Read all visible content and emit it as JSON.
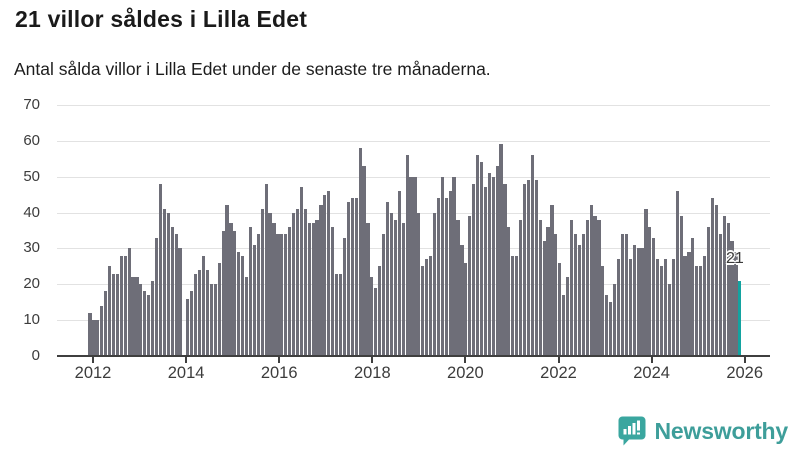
{
  "header": {
    "title": "21 villor såldes i Lilla Edet",
    "subtitle": "Antal sålda villor i Lilla Edet under de senaste tre månaderna."
  },
  "annotation": {
    "last_value_label": "21"
  },
  "branding": {
    "logo_text": "Newsworthy",
    "logo_icon": "bar-chart-speech-bubble-icon"
  },
  "colors": {
    "bar": "#6e6e78",
    "highlight": "#13a3a0",
    "gridline": "#e2e2e2",
    "axis": "#3f3f3f",
    "brand_teal": "#3aa69f",
    "text": "#1a1a1a"
  },
  "chart_data": {
    "type": "bar",
    "title": "21 villor såldes i Lilla Edet",
    "subtitle": "Antal sålda villor i Lilla Edet under de senaste tre månaderna.",
    "frequency": "monthly",
    "x_start": "2012-01",
    "x_tick_labels": [
      "2012",
      "2014",
      "2016",
      "2018",
      "2020",
      "2022",
      "2024",
      "2026"
    ],
    "y_ticks": [
      0,
      10,
      20,
      30,
      40,
      50,
      60,
      70
    ],
    "ylim": [
      0,
      70
    ],
    "grid": "horizontal",
    "legend": "none",
    "highlight_last": {
      "value": 21,
      "color": "#13a3a0",
      "label": "21"
    },
    "series": [
      {
        "name": "Antal sålda villor (rullande tre månader)",
        "values": [
          12,
          10,
          10,
          14,
          18,
          25,
          23,
          23,
          28,
          28,
          30,
          22,
          22,
          20,
          18,
          17,
          21,
          33,
          48,
          41,
          40,
          36,
          34,
          30,
          0,
          16,
          18,
          23,
          24,
          28,
          24,
          20,
          20,
          26,
          35,
          42,
          37,
          35,
          29,
          28,
          22,
          36,
          31,
          34,
          41,
          48,
          40,
          37,
          34,
          34,
          34,
          36,
          40,
          41,
          47,
          41,
          37,
          37,
          38,
          42,
          45,
          46,
          36,
          23,
          23,
          33,
          43,
          44,
          44,
          58,
          53,
          37,
          22,
          19,
          25,
          34,
          43,
          40,
          38,
          46,
          37,
          56,
          50,
          50,
          40,
          25,
          27,
          28,
          40,
          44,
          50,
          44,
          46,
          50,
          38,
          31,
          26,
          39,
          48,
          56,
          54,
          47,
          51,
          50,
          53,
          59,
          48,
          36,
          28,
          28,
          38,
          48,
          49,
          56,
          49,
          38,
          32,
          36,
          42,
          34,
          26,
          17,
          22,
          38,
          34,
          31,
          34,
          38,
          42,
          39,
          38,
          25,
          17,
          15,
          20,
          27,
          34,
          34,
          27,
          31,
          30,
          30,
          41,
          36,
          33,
          27,
          25,
          27,
          20,
          27,
          46,
          39,
          28,
          29,
          33,
          25,
          25,
          28,
          36,
          44,
          42,
          34,
          39,
          37,
          32,
          29,
          21
        ]
      }
    ]
  }
}
